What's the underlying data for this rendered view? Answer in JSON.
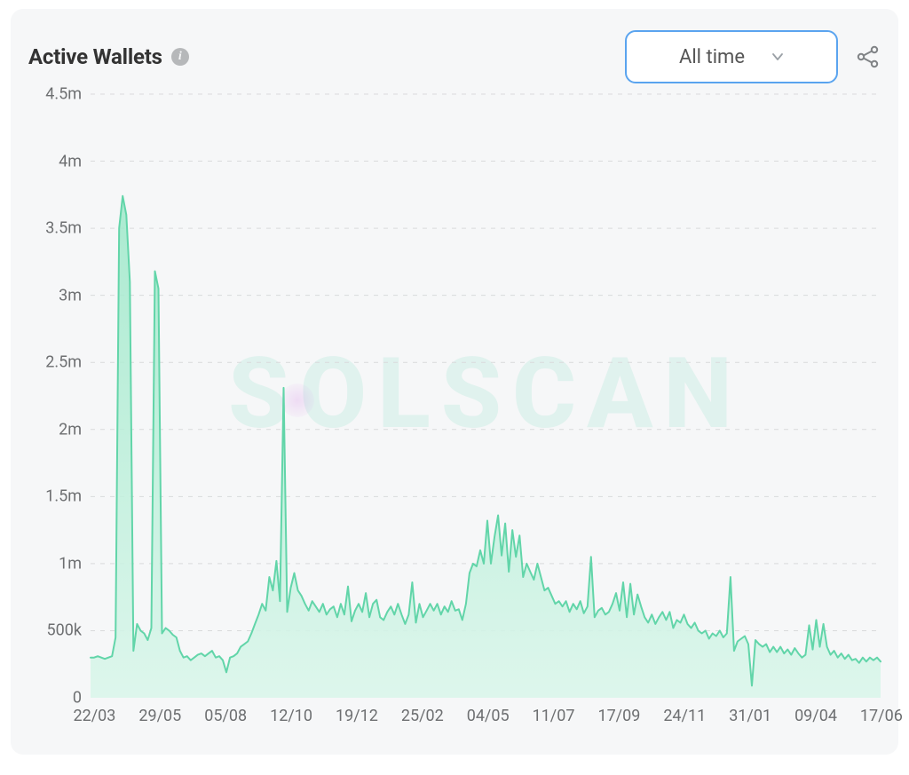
{
  "header": {
    "title": "Active Wallets",
    "info_tooltip": "i"
  },
  "controls": {
    "dropdown": {
      "selected": "All time",
      "options": [
        "All time"
      ]
    }
  },
  "watermark": "SOLSCAN",
  "chart": {
    "type": "area",
    "background_color": "#f6f7f8",
    "grid_color": "#d9dadb",
    "grid_dash": "5 6",
    "axis_label_color": "#6d6f71",
    "axis_label_fontsize": 18,
    "line_color": "#62d5a9",
    "line_width": 2,
    "fill_top_color": "#9de8c9",
    "fill_bottom_color": "#d9f6ea",
    "fill_opacity": 0.85,
    "y_axis": {
      "min": 0,
      "max": 4500000,
      "tick_step": 500000,
      "ticks": [
        {
          "value": 0,
          "label": "0"
        },
        {
          "value": 500000,
          "label": "500k"
        },
        {
          "value": 1000000,
          "label": "1m"
        },
        {
          "value": 1500000,
          "label": "1.5m"
        },
        {
          "value": 2000000,
          "label": "2m"
        },
        {
          "value": 2500000,
          "label": "2.5m"
        },
        {
          "value": 3000000,
          "label": "3m"
        },
        {
          "value": 3500000,
          "label": "3.5m"
        },
        {
          "value": 4000000,
          "label": "4m"
        },
        {
          "value": 4500000,
          "label": "4.5m"
        }
      ]
    },
    "x_axis": {
      "labels": [
        "22/03",
        "29/05",
        "05/08",
        "12/10",
        "19/12",
        "25/02",
        "04/05",
        "11/07",
        "17/09",
        "24/11",
        "31/01",
        "09/04",
        "17/06"
      ],
      "label_positions_pct": [
        0.5,
        8.8,
        17.1,
        25.4,
        33.7,
        42.0,
        50.3,
        58.6,
        66.9,
        75.2,
        83.5,
        91.8,
        100.1
      ]
    },
    "series": [
      {
        "name": "active_wallets",
        "values": [
          300000,
          300000,
          310000,
          300000,
          290000,
          300000,
          310000,
          450000,
          3500000,
          3740000,
          3600000,
          3100000,
          350000,
          550000,
          500000,
          480000,
          430000,
          520000,
          3180000,
          3050000,
          480000,
          520000,
          500000,
          470000,
          450000,
          350000,
          300000,
          310000,
          280000,
          300000,
          320000,
          330000,
          310000,
          330000,
          350000,
          300000,
          310000,
          280000,
          190000,
          300000,
          310000,
          330000,
          380000,
          400000,
          420000,
          480000,
          550000,
          620000,
          700000,
          650000,
          900000,
          800000,
          1020000,
          720000,
          2310000,
          640000,
          820000,
          930000,
          800000,
          760000,
          700000,
          650000,
          720000,
          680000,
          640000,
          700000,
          620000,
          660000,
          680000,
          600000,
          700000,
          620000,
          830000,
          570000,
          650000,
          700000,
          640000,
          780000,
          600000,
          700000,
          730000,
          600000,
          580000,
          640000,
          680000,
          620000,
          700000,
          620000,
          550000,
          620000,
          860000,
          560000,
          700000,
          600000,
          650000,
          700000,
          650000,
          700000,
          620000,
          680000,
          640000,
          720000,
          650000,
          660000,
          580000,
          700000,
          930000,
          1000000,
          980000,
          1100000,
          1000000,
          1320000,
          1000000,
          1200000,
          1360000,
          1060000,
          1300000,
          940000,
          1250000,
          1050000,
          1210000,
          900000,
          1000000,
          940000,
          880000,
          1000000,
          900000,
          800000,
          820000,
          760000,
          700000,
          720000,
          680000,
          720000,
          640000,
          700000,
          660000,
          720000,
          630000,
          680000,
          1050000,
          600000,
          650000,
          670000,
          620000,
          640000,
          700000,
          780000,
          650000,
          860000,
          600000,
          850000,
          620000,
          770000,
          680000,
          600000,
          560000,
          620000,
          550000,
          600000,
          640000,
          580000,
          640000,
          520000,
          580000,
          560000,
          620000,
          550000,
          520000,
          560000,
          500000,
          480000,
          500000,
          440000,
          480000,
          460000,
          500000,
          450000,
          480000,
          900000,
          350000,
          420000,
          440000,
          460000,
          400000,
          90000,
          430000,
          400000,
          380000,
          400000,
          340000,
          380000,
          340000,
          380000,
          330000,
          360000,
          320000,
          370000,
          330000,
          300000,
          320000,
          540000,
          360000,
          580000,
          380000,
          550000,
          380000,
          320000,
          350000,
          300000,
          330000,
          290000,
          320000,
          280000,
          290000,
          260000,
          300000,
          270000,
          300000,
          280000,
          300000,
          270000
        ]
      }
    ]
  }
}
